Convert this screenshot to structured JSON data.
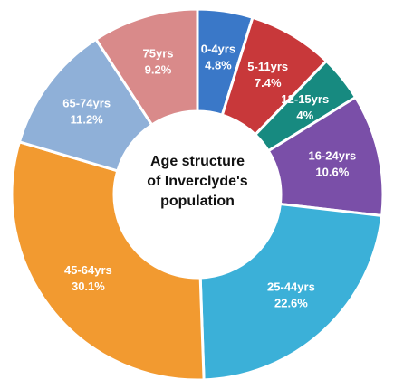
{
  "chart_data": {
    "type": "donut",
    "title": "Age structure of Inverclyde's population",
    "categories": [
      "0-4yrs",
      "5-11yrs",
      "12-15yrs",
      "16-24yrs",
      "25-44yrs",
      "45-64yrs",
      "65-74yrs",
      "75yrs"
    ],
    "values": [
      4.8,
      7.4,
      4,
      10.6,
      22.6,
      30.1,
      11.2,
      9.2
    ],
    "value_labels": [
      "4.8%",
      "7.4%",
      "4%",
      "10.6%",
      "22.6%",
      "30.1%",
      "11.2%",
      "9.2%"
    ],
    "colors": [
      "#3a78c8",
      "#c8383a",
      "#178a80",
      "#7a4fa8",
      "#3bb0d8",
      "#f29a30",
      "#8fb0d8",
      "#d98a8a"
    ]
  }
}
